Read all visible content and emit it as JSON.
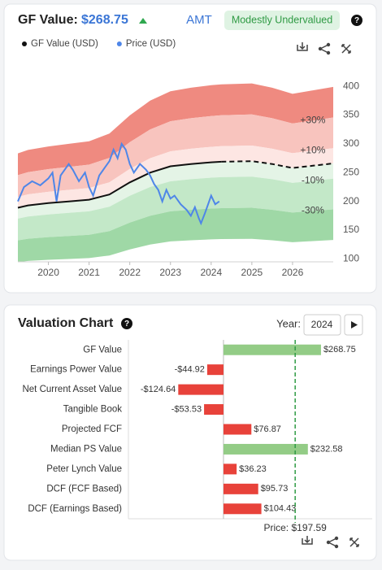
{
  "header": {
    "label": "GF Value:",
    "value": "$268.75",
    "ticker": "AMT",
    "badge": "Modestly Undervalued"
  },
  "chart_data": [
    {
      "type": "line",
      "series": [
        {
          "name": "GF Value (USD)",
          "color": "#111111",
          "dashed_after": 2024.25,
          "x": [
            2019.25,
            2019.5,
            2020,
            2020.5,
            2021,
            2021.5,
            2022,
            2022.5,
            2023,
            2023.5,
            2024,
            2024.25,
            2025,
            2025.5,
            2026,
            2026.5,
            2027
          ],
          "values": [
            189,
            193,
            197,
            200,
            203,
            212,
            233,
            250,
            261,
            265,
            268,
            269,
            270,
            265,
            258,
            262,
            266
          ]
        },
        {
          "name": "Price (USD)",
          "color": "#4e86e8",
          "x": [
            2019.25,
            2019.4,
            2019.6,
            2019.8,
            2020,
            2020.1,
            2020.2,
            2020.3,
            2020.5,
            2020.6,
            2020.75,
            2020.9,
            2021,
            2021.1,
            2021.25,
            2021.4,
            2021.5,
            2021.6,
            2021.7,
            2021.8,
            2021.9,
            2022,
            2022.1,
            2022.25,
            2022.4,
            2022.5,
            2022.6,
            2022.7,
            2022.8,
            2022.9,
            2023,
            2023.1,
            2023.25,
            2023.4,
            2023.5,
            2023.6,
            2023.7,
            2023.75,
            2023.85,
            2024,
            2024.1,
            2024.2
          ],
          "values": [
            200,
            225,
            235,
            228,
            240,
            250,
            200,
            245,
            265,
            255,
            235,
            250,
            225,
            210,
            245,
            260,
            270,
            290,
            275,
            300,
            290,
            265,
            250,
            265,
            255,
            245,
            230,
            220,
            200,
            220,
            205,
            210,
            195,
            185,
            175,
            190,
            170,
            162,
            180,
            210,
            195,
            200
          ]
        }
      ],
      "bands": [
        {
          "label": "+30%",
          "value": 30
        },
        {
          "label": "+10%",
          "value": 10
        },
        {
          "label": "-10%",
          "value": -10
        },
        {
          "label": "-30%",
          "value": -30
        }
      ],
      "band_colors": [
        "#ef8a80",
        "#f8c4be",
        "#fde6e3",
        "#e4f4e6",
        "#c3e8c8",
        "#9fd8a6"
      ],
      "xlim": [
        2019.25,
        2027
      ],
      "xticks": [
        2020,
        2021,
        2022,
        2023,
        2024,
        2025,
        2026
      ],
      "ylim": [
        95,
        420
      ],
      "yticks": [
        100,
        150,
        200,
        250,
        300,
        350,
        400
      ]
    },
    {
      "type": "hbar",
      "title": "Valuation Chart",
      "year_label": "Year:",
      "year": "2024",
      "categories": [
        "GF Value",
        "Earnings Power Value",
        "Net Current Asset Value",
        "Tangible Book",
        "Projected FCF",
        "Median PS Value",
        "Peter Lynch Value",
        "DCF (FCF Based)",
        "DCF (Earnings Based)"
      ],
      "values": [
        268.75,
        -44.92,
        -124.64,
        -53.53,
        76.87,
        232.58,
        36.23,
        95.73,
        104.43
      ],
      "value_labels": [
        "$268.75",
        "-$44.92",
        "-$124.64",
        "-$53.53",
        "$76.87",
        "$232.58",
        "$36.23",
        "$95.73",
        "$104.43"
      ],
      "colors": [
        "#93cc86",
        "#e8423a",
        "#e8423a",
        "#e8423a",
        "#e8423a",
        "#93cc86",
        "#e8423a",
        "#e8423a",
        "#e8423a"
      ],
      "price": {
        "label": "Price: $197.59",
        "value": 197.59,
        "color": "#2f9a44"
      },
      "xlim": [
        -262,
        410
      ]
    }
  ]
}
